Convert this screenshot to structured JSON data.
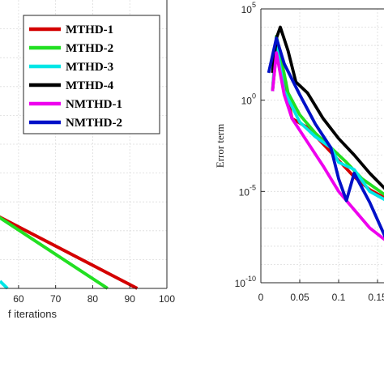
{
  "chart_data": [
    {
      "type": "line",
      "xlabel": "f iterations",
      "xticks": [
        60,
        70,
        80,
        90,
        100
      ],
      "xlim": [
        55,
        100
      ],
      "ylim": [
        0,
        10
      ],
      "grid": true,
      "legend_position": "top-right",
      "series": [
        {
          "name": "MTHD-1",
          "color": "#d40000",
          "points": [
            [
              50,
              2.8
            ],
            [
              92,
              0.0
            ]
          ]
        },
        {
          "name": "MTHD-2",
          "color": "#22e022",
          "points": [
            [
              52,
              2.7
            ],
            [
              84,
              0.0
            ]
          ]
        },
        {
          "name": "MTHD-3",
          "color": "#00e6e6",
          "points": [
            [
              55,
              0.25
            ],
            [
              57,
              0.0
            ]
          ]
        },
        {
          "name": "MTHD-4",
          "color": "#000000",
          "points": []
        },
        {
          "name": "NMTHD-1",
          "color": "#ee00ee",
          "points": []
        },
        {
          "name": "NMTHD-2",
          "color": "#0010c8",
          "points": []
        }
      ]
    },
    {
      "type": "line",
      "ylabel": "Error term",
      "yscale": "log",
      "xticks": [
        "0",
        "0.05",
        "0.1",
        "0.15"
      ],
      "yticks": [
        {
          "base": "10",
          "exp": "5"
        },
        {
          "base": "10",
          "exp": "0"
        },
        {
          "base": "10",
          "exp": "-5"
        },
        {
          "base": "10",
          "exp": "-10"
        }
      ],
      "xlim": [
        0,
        0.17
      ],
      "ylim_exp": [
        -10,
        5
      ],
      "grid": true,
      "series": [
        {
          "name": "MTHD-1",
          "color": "#d40000",
          "points": [
            [
              0.015,
              0.5
            ],
            [
              0.02,
              2.7
            ],
            [
              0.03,
              1.0
            ],
            [
              0.04,
              -1.0
            ],
            [
              0.06,
              -1.5
            ],
            [
              0.08,
              -2.4
            ],
            [
              0.1,
              -3.3
            ],
            [
              0.12,
              -4.2
            ],
            [
              0.14,
              -4.9
            ],
            [
              0.17,
              -5.6
            ]
          ]
        },
        {
          "name": "MTHD-2",
          "color": "#22e022",
          "points": [
            [
              0.015,
              0.5
            ],
            [
              0.02,
              3.5
            ],
            [
              0.025,
              2.5
            ],
            [
              0.035,
              0.4
            ],
            [
              0.05,
              -0.8
            ],
            [
              0.07,
              -1.8
            ],
            [
              0.09,
              -2.6
            ],
            [
              0.11,
              -3.4
            ],
            [
              0.13,
              -4.3
            ],
            [
              0.15,
              -4.9
            ],
            [
              0.17,
              -5.5
            ]
          ]
        },
        {
          "name": "MTHD-3",
          "color": "#00e6e6",
          "points": [
            [
              0.015,
              0.5
            ],
            [
              0.02,
              3.0
            ],
            [
              0.03,
              0.5
            ],
            [
              0.05,
              -1.2
            ],
            [
              0.07,
              -2.0
            ],
            [
              0.09,
              -2.6
            ],
            [
              0.1,
              -3.4
            ],
            [
              0.12,
              -3.8
            ],
            [
              0.14,
              -5.0
            ],
            [
              0.17,
              -5.7
            ]
          ]
        },
        {
          "name": "MTHD-4",
          "color": "#000000",
          "points": [
            [
              0.015,
              1.5
            ],
            [
              0.02,
              3.4
            ],
            [
              0.025,
              4.0
            ],
            [
              0.035,
              2.7
            ],
            [
              0.045,
              1.0
            ],
            [
              0.06,
              0.4
            ],
            [
              0.08,
              -1.0
            ],
            [
              0.1,
              -2.1
            ],
            [
              0.12,
              -3.0
            ],
            [
              0.14,
              -4.0
            ],
            [
              0.17,
              -5.3
            ]
          ]
        },
        {
          "name": "NMTHD-1",
          "color": "#ee00ee",
          "points": [
            [
              0.015,
              0.5
            ],
            [
              0.02,
              2.6
            ],
            [
              0.03,
              0.3
            ],
            [
              0.04,
              -1.0
            ],
            [
              0.06,
              -2.3
            ],
            [
              0.08,
              -3.6
            ],
            [
              0.1,
              -5.0
            ],
            [
              0.12,
              -6.0
            ],
            [
              0.14,
              -7.0
            ],
            [
              0.17,
              -8.0
            ]
          ]
        },
        {
          "name": "NMTHD-2",
          "color": "#0010c8",
          "points": [
            [
              0.01,
              1.5
            ],
            [
              0.02,
              3.4
            ],
            [
              0.03,
              2.0
            ],
            [
              0.05,
              0.3
            ],
            [
              0.07,
              -1.3
            ],
            [
              0.09,
              -2.6
            ],
            [
              0.1,
              -4.3
            ],
            [
              0.11,
              -5.5
            ],
            [
              0.12,
              -4.0
            ],
            [
              0.14,
              -5.6
            ],
            [
              0.16,
              -7.5
            ],
            [
              0.17,
              -9.6
            ]
          ]
        }
      ]
    }
  ]
}
